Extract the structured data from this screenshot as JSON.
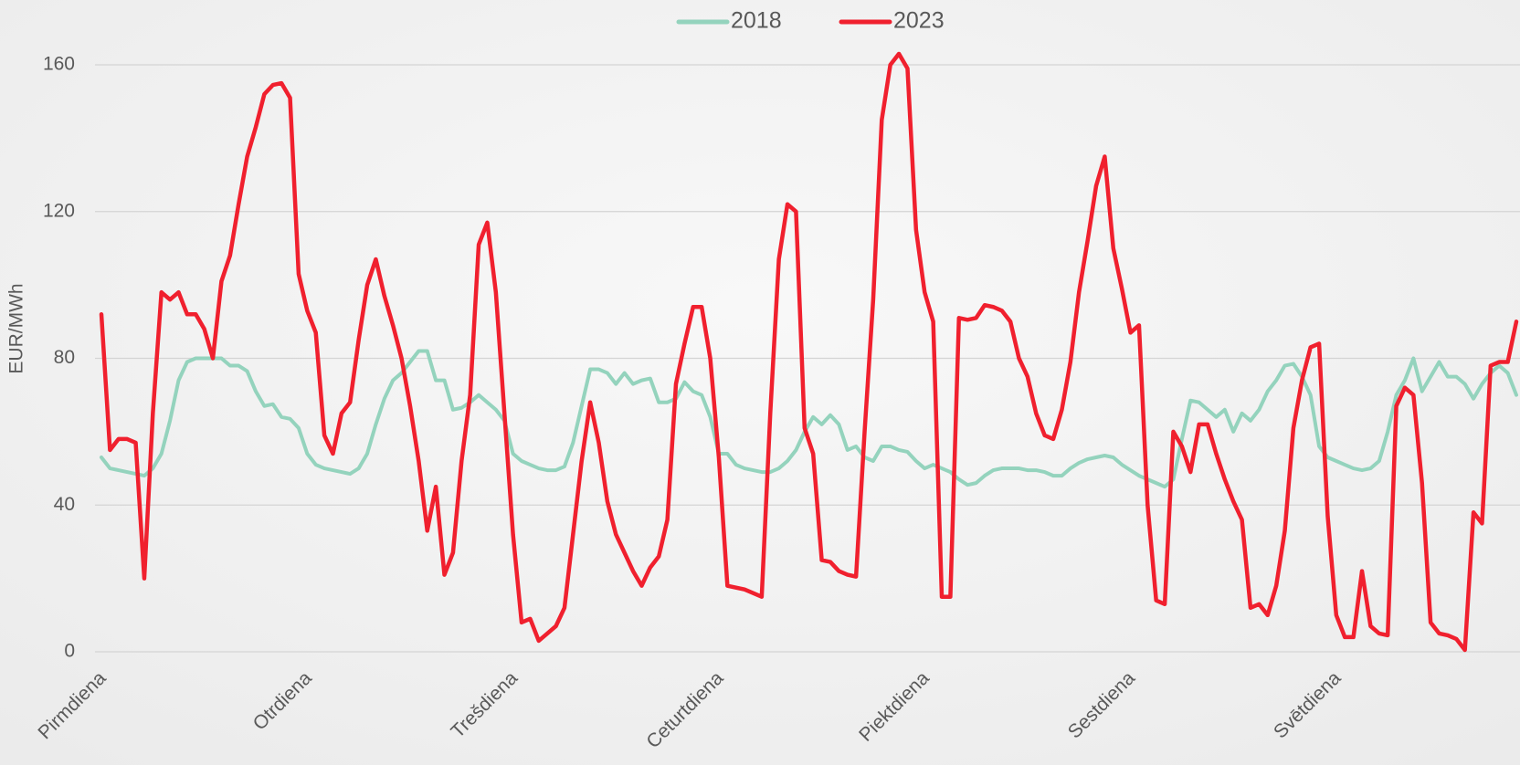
{
  "chart_data": {
    "type": "line",
    "y_label": "EUR/MWh",
    "categories": [
      "Pirmdiena",
      null,
      null,
      null,
      null,
      null,
      null,
      null,
      null,
      null,
      null,
      null,
      null,
      null,
      null,
      null,
      null,
      null,
      null,
      null,
      null,
      null,
      null,
      null,
      "Otrdiena",
      null,
      null,
      null,
      null,
      null,
      null,
      null,
      null,
      null,
      null,
      null,
      null,
      null,
      null,
      null,
      null,
      null,
      null,
      null,
      null,
      null,
      null,
      null,
      "Trešdiena",
      null,
      null,
      null,
      null,
      null,
      null,
      null,
      null,
      null,
      null,
      null,
      null,
      null,
      null,
      null,
      null,
      null,
      null,
      null,
      null,
      null,
      null,
      null,
      "Ceturtdiena",
      null,
      null,
      null,
      null,
      null,
      null,
      null,
      null,
      null,
      null,
      null,
      null,
      null,
      null,
      null,
      null,
      null,
      null,
      null,
      null,
      null,
      null,
      null,
      "Piektdiena",
      null,
      null,
      null,
      null,
      null,
      null,
      null,
      null,
      null,
      null,
      null,
      null,
      null,
      null,
      null,
      null,
      null,
      null,
      null,
      null,
      null,
      null,
      null,
      "Sestdiena",
      null,
      null,
      null,
      null,
      null,
      null,
      null,
      null,
      null,
      null,
      null,
      null,
      null,
      null,
      null,
      null,
      null,
      null,
      null,
      null,
      null,
      null,
      null,
      "Svētdiena",
      null,
      null,
      null,
      null,
      null,
      null,
      null,
      null,
      null,
      null,
      null,
      null,
      null,
      null,
      null,
      null,
      null,
      null,
      null,
      null,
      null
    ],
    "series": [
      {
        "name": "2018",
        "color": "#94d3bd",
        "values": [
          53,
          50,
          49.5,
          49,
          48.5,
          48,
          50,
          54,
          63,
          74,
          79,
          80,
          80,
          80,
          80,
          78,
          78,
          76.5,
          71,
          67,
          67.5,
          64,
          63.5,
          61,
          54,
          51,
          50,
          49.5,
          49,
          48.5,
          50,
          54,
          62,
          69,
          74,
          76,
          79,
          82,
          82,
          74,
          74,
          66,
          66.5,
          68,
          70,
          68,
          66,
          63,
          54,
          52,
          51,
          50,
          49.5,
          49.5,
          50.5,
          57,
          67,
          77,
          77,
          76,
          73,
          76,
          73,
          74,
          74.5,
          68,
          68,
          69,
          73.5,
          71,
          70,
          64,
          54,
          54,
          51,
          50,
          49.5,
          49,
          49,
          50,
          52,
          55,
          60,
          64,
          62,
          64.5,
          62,
          55,
          56,
          53,
          52,
          56,
          56,
          55,
          54.5,
          52,
          50,
          51,
          50,
          49,
          47,
          45.5,
          46,
          48,
          49.5,
          50,
          50,
          50,
          49.5,
          49.5,
          49,
          48,
          48,
          50,
          51.5,
          52.5,
          53,
          53.5,
          53,
          51,
          49.5,
          48,
          47,
          46,
          45,
          47,
          58,
          68.5,
          68,
          66,
          64,
          66,
          60,
          65,
          63,
          66,
          71,
          74,
          78,
          78.5,
          75,
          70,
          56,
          53,
          52,
          51,
          50,
          49.5,
          50,
          52,
          60,
          70,
          74,
          80,
          71,
          75,
          79,
          75,
          75,
          73,
          69,
          73,
          76,
          78,
          76,
          70
        ]
      },
      {
        "name": "2023",
        "color": "#f0202e",
        "values": [
          92,
          55,
          58,
          58,
          57,
          20,
          65,
          98,
          96,
          98,
          92,
          92,
          88,
          80,
          101,
          108,
          122,
          135,
          143,
          152,
          154.5,
          155,
          151,
          103,
          93,
          87,
          59,
          54,
          65,
          68,
          85,
          100,
          107,
          97,
          89,
          80,
          67,
          52,
          33,
          45,
          21,
          27,
          52,
          70,
          111,
          117,
          98,
          65,
          32,
          8,
          9,
          3,
          5,
          7,
          12,
          32,
          52,
          68,
          57,
          41,
          32,
          27,
          22,
          18,
          23,
          26,
          36,
          73,
          84,
          94,
          94,
          80,
          53,
          18,
          17.5,
          17,
          16,
          15,
          65,
          107,
          122,
          120,
          61,
          54,
          25,
          24.5,
          22,
          21,
          20.5,
          60,
          96,
          145,
          160,
          163,
          159,
          115,
          98,
          90,
          15,
          15,
          91,
          90.5,
          91,
          94.5,
          94,
          93,
          90,
          80,
          75,
          65,
          59,
          58,
          66,
          79,
          98,
          112,
          127,
          135,
          110,
          99,
          87,
          89,
          40,
          14,
          13,
          60,
          56,
          49,
          62,
          62,
          54,
          47,
          41,
          36,
          12,
          13,
          10,
          18,
          33,
          61,
          74,
          83,
          84,
          37,
          10,
          4,
          4,
          22,
          7,
          5,
          4.5,
          67,
          72,
          70,
          46,
          8,
          5,
          4.5,
          3.5,
          0.5,
          38,
          35,
          78,
          79,
          79,
          90
        ]
      }
    ],
    "ylim": [
      0,
      160
    ],
    "yticks": [
      0,
      40,
      80,
      120,
      160
    ],
    "grid": true,
    "legend": "top"
  }
}
